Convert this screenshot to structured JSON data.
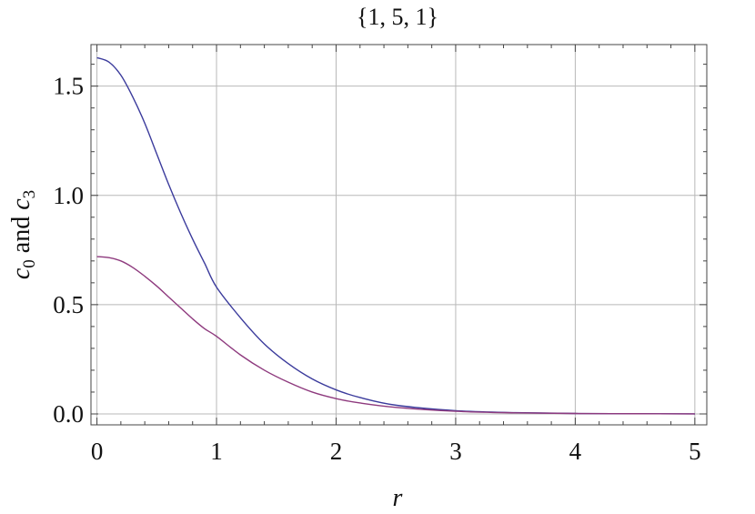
{
  "chart_data": {
    "type": "line",
    "title": "{1, 5, 1}",
    "xlabel": "r",
    "ylabel_parts": [
      "c",
      "0",
      " and ",
      "c",
      "3"
    ],
    "xlim": [
      -0.05,
      5.1
    ],
    "ylim": [
      -0.05,
      1.69
    ],
    "x_ticks": [
      0,
      1,
      2,
      3,
      4,
      5
    ],
    "x_tick_labels": [
      "0",
      "1",
      "2",
      "3",
      "4",
      "5"
    ],
    "y_ticks": [
      0.0,
      0.5,
      1.0,
      1.5
    ],
    "y_tick_labels": [
      "0.0",
      "0.5",
      "1.0",
      "1.5"
    ],
    "grid": true,
    "series": [
      {
        "color": "#3b3b9c",
        "x": [
          0,
          0.1,
          0.2,
          0.3,
          0.4,
          0.5,
          0.6,
          0.7,
          0.8,
          0.9,
          1.0,
          1.2,
          1.4,
          1.6,
          1.8,
          2.0,
          2.2,
          2.5,
          3.0,
          3.5,
          4.0,
          4.5,
          5.0
        ],
        "values": [
          1.63,
          1.61,
          1.55,
          1.45,
          1.33,
          1.19,
          1.05,
          0.92,
          0.8,
          0.69,
          0.58,
          0.44,
          0.32,
          0.23,
          0.16,
          0.11,
          0.075,
          0.04,
          0.015,
          0.006,
          0.002,
          0.001,
          0.0
        ]
      },
      {
        "color": "#8e3a7e",
        "x": [
          0,
          0.1,
          0.2,
          0.3,
          0.4,
          0.5,
          0.6,
          0.7,
          0.8,
          0.9,
          1.0,
          1.2,
          1.4,
          1.6,
          1.8,
          2.0,
          2.2,
          2.5,
          3.0,
          3.5,
          4.0,
          4.5,
          5.0
        ],
        "values": [
          0.72,
          0.715,
          0.7,
          0.67,
          0.63,
          0.585,
          0.535,
          0.485,
          0.435,
          0.39,
          0.355,
          0.27,
          0.2,
          0.145,
          0.1,
          0.07,
          0.05,
          0.03,
          0.012,
          0.005,
          0.002,
          0.001,
          0.0
        ]
      }
    ]
  }
}
